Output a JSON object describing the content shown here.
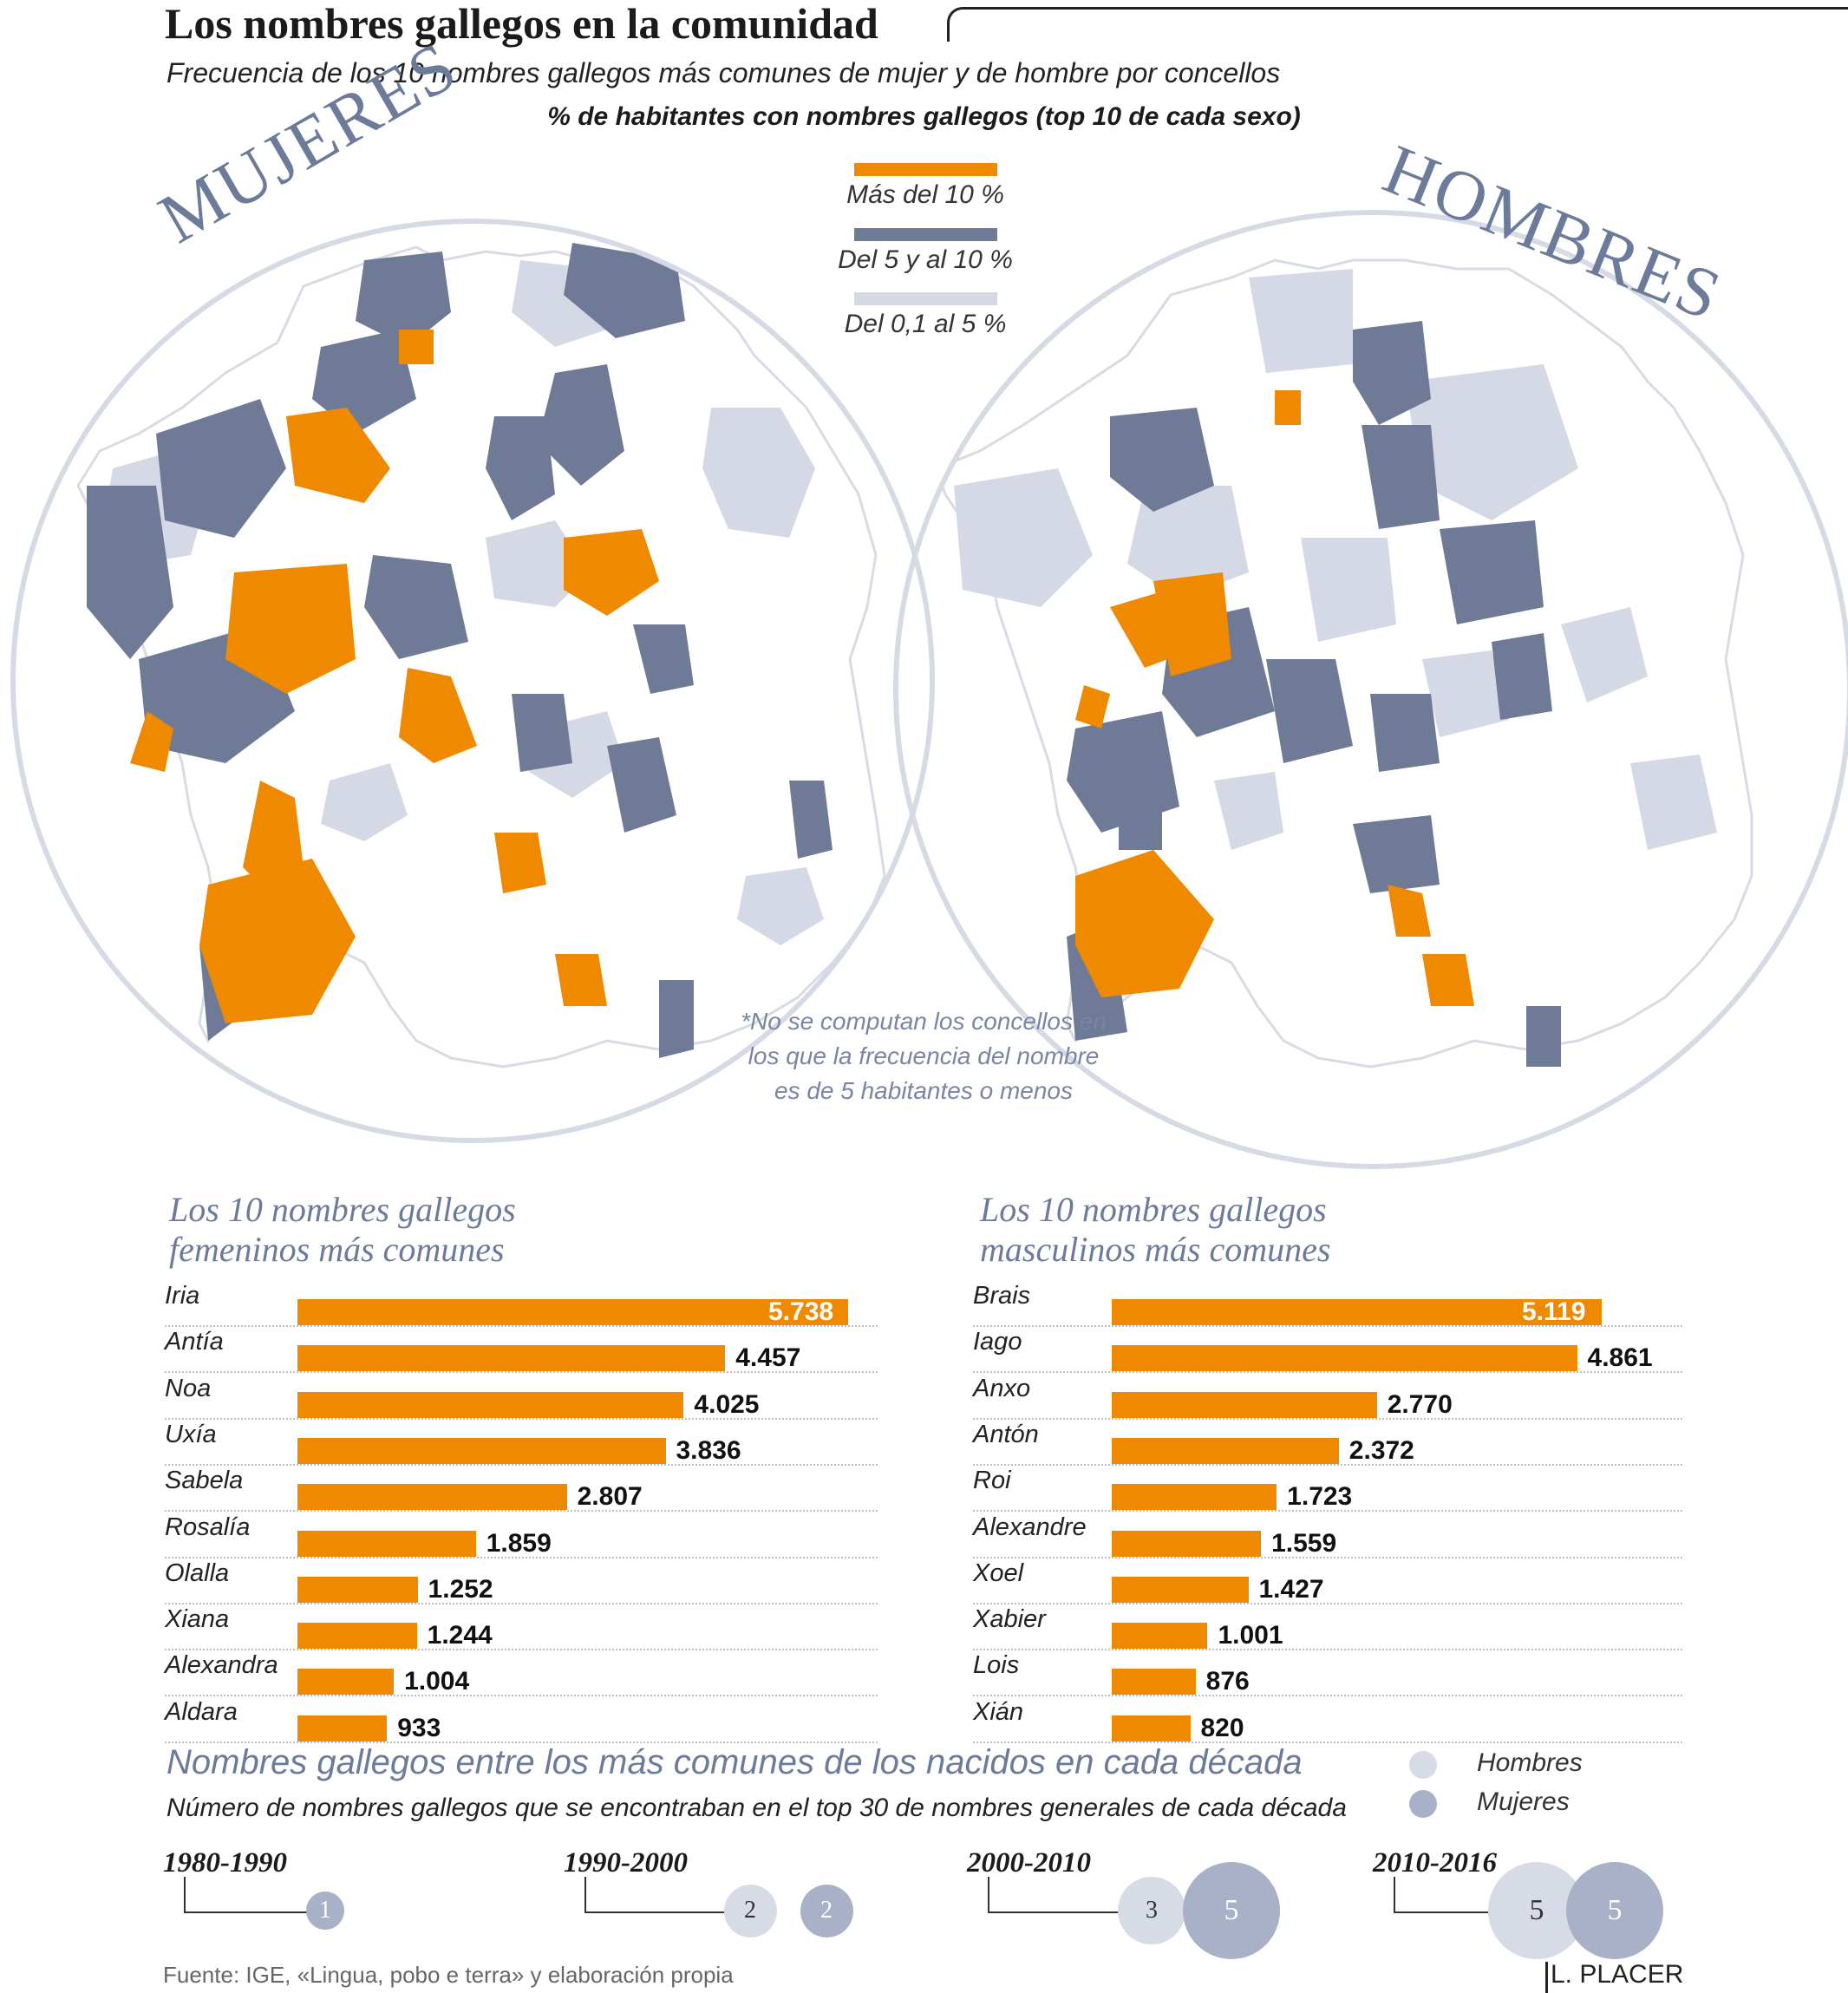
{
  "header": {
    "title": "Los nombres gallegos en la comunidad",
    "subtitle": "Frecuencia de los 10 nombres gallegos más comunes de mujer y de hombre por concellos",
    "map_title": "% de habitantes con nombres gallegos (top 10 de cada sexo)"
  },
  "maps": {
    "left_label": "MUJERES",
    "right_label": "HOMBRES",
    "legend": [
      {
        "label": "Más del 10 %",
        "color": "#ef8a00"
      },
      {
        "label": "Del 5 y al 10 %",
        "color": "#6f7a96"
      },
      {
        "label": "Del 0,1 al 5 %",
        "color": "#d5d9e5"
      }
    ],
    "note": "*No se computan los concellos en los que la frecuencia del nombre es de 5 habitantes o menos"
  },
  "chart_data": [
    {
      "type": "bar",
      "title": "Los 10 nombres gallegos femeninos más comunes",
      "categories": [
        "Iria",
        "Antía",
        "Noa",
        "Uxía",
        "Sabela",
        "Rosalía",
        "Olalla",
        "Xiana",
        "Alexandra",
        "Aldara"
      ],
      "values": [
        5738,
        4457,
        4025,
        3836,
        2807,
        1859,
        1252,
        1244,
        1004,
        933
      ],
      "labels": [
        "5.738",
        "4.457",
        "4.025",
        "3.836",
        "2.807",
        "1.859",
        "1.252",
        "1.244",
        "1.004",
        "933"
      ],
      "color": "#ef8a00"
    },
    {
      "type": "bar",
      "title": "Los 10 nombres gallegos masculinos más comunes",
      "categories": [
        "Brais",
        "Iago",
        "Anxo",
        "Antón",
        "Roi",
        "Alexandre",
        "Xoel",
        "Xabier",
        "Lois",
        "Xián"
      ],
      "values": [
        5119,
        4861,
        2770,
        2372,
        1723,
        1559,
        1427,
        1001,
        876,
        820
      ],
      "labels": [
        "5.119",
        "4.861",
        "2.770",
        "2.372",
        "1.723",
        "1.559",
        "1.427",
        "1.001",
        "876",
        "820"
      ],
      "color": "#ef8a00"
    },
    {
      "type": "scatter",
      "title": "Nombres gallegos entre los más comunes  de los nacidos en cada década",
      "subtitle": "Número de nombres gallegos que se encontraban en el top 30 de nombres generales de cada década",
      "categories": [
        "1980-1990",
        "1990-2000",
        "2000-2010",
        "2010-2016"
      ],
      "series": [
        {
          "name": "Hombres",
          "values": [
            null,
            2,
            3,
            5
          ],
          "color": "#d7dbe6"
        },
        {
          "name": "Mujeres",
          "values": [
            1,
            2,
            5,
            5
          ],
          "color": "#a9b1c8"
        }
      ]
    }
  ],
  "footer": {
    "source": "Fuente: IGE, «Lingua, pobo e terra» y elaboración propia",
    "author": "L. PLACER"
  }
}
